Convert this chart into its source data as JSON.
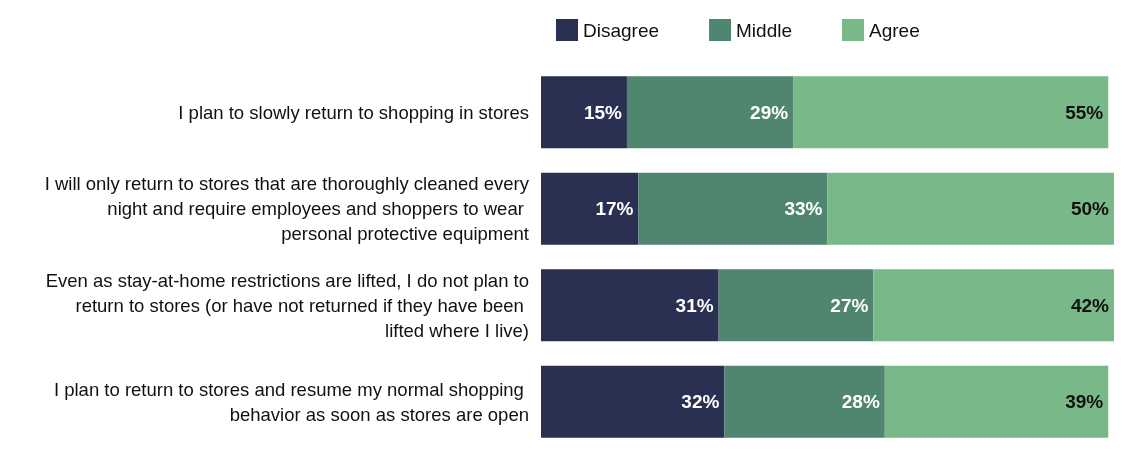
{
  "chart_data": {
    "type": "bar",
    "orientation": "horizontal",
    "stacked": true,
    "legend": "top",
    "categories": [
      "I plan to slowly return to shopping in stores",
      "I will only return to stores that are thoroughly cleaned every night and require employees and shoppers to wear personal protective equipment",
      "Even as stay-at-home restrictions are lifted, I do not plan to return to stores (or have not returned if they have been lifted where I live)",
      "I plan to return to stores and resume my normal shopping behavior as soon as stores are open"
    ],
    "series": [
      {
        "name": "Disagree",
        "color": "#293052",
        "values": [
          15,
          17,
          31,
          32
        ],
        "value_labels": [
          "15%",
          "17%",
          "31%",
          "32%"
        ]
      },
      {
        "name": "Middle",
        "color": "#508670",
        "values": [
          29,
          33,
          27,
          28
        ],
        "value_labels": [
          "29%",
          "33%",
          "27%",
          "28%"
        ]
      },
      {
        "name": "Agree",
        "color": "#79b989",
        "values": [
          55,
          50,
          42,
          39
        ],
        "value_labels": [
          "55%",
          "50%",
          "42%",
          "39%"
        ]
      }
    ]
  }
}
